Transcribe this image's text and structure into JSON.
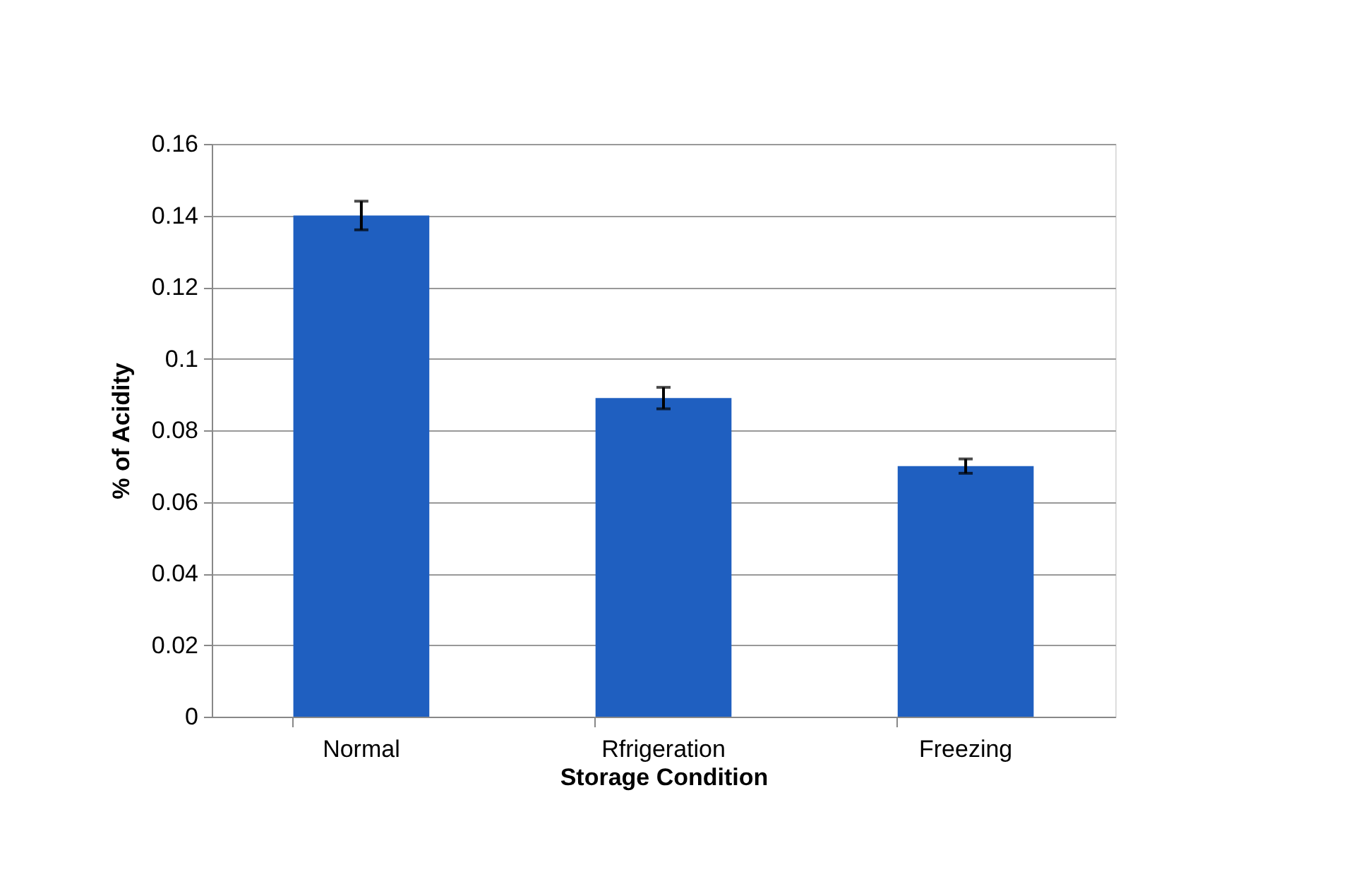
{
  "chart_data": {
    "type": "bar",
    "xlabel": "Storage Condition",
    "ylabel": "% of Acidity",
    "categories": [
      "Normal",
      "Rfrigeration",
      "Freezing"
    ],
    "values": [
      0.14,
      0.089,
      0.07
    ],
    "errors": [
      0.004,
      0.003,
      0.002
    ],
    "color": "#1f5fc0",
    "ylim": [
      0,
      0.16
    ],
    "yticks": [
      0,
      0.02,
      0.04,
      0.06,
      0.08,
      0.1,
      0.12,
      0.14,
      0.16
    ],
    "grid": "y"
  }
}
